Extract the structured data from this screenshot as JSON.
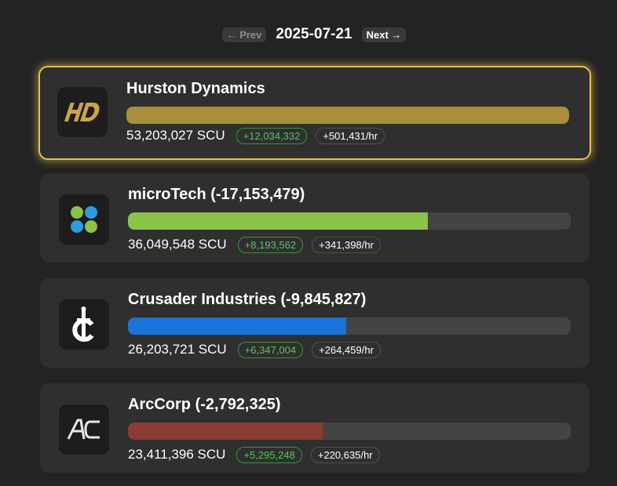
{
  "nav": {
    "prev_label": "← Prev",
    "date": "2025-07-21",
    "next_label": "Next →"
  },
  "corps": [
    {
      "name": "Hurston Dynamics",
      "scu": "53,203,027 SCU",
      "gain": "+12,034,332",
      "rate": "+501,431/hr",
      "fill_fraction": 1.0,
      "bar_color": "#a98f3b",
      "highlight": true,
      "logo_text": "HD"
    },
    {
      "name": "microTech (-17,153,479)",
      "scu": "36,049,548 SCU",
      "gain": "+8,193,562",
      "rate": "+341,398/hr",
      "fill_fraction": 0.678,
      "bar_color": "#8bc34a",
      "highlight": false
    },
    {
      "name": "Crusader Industries (-9,845,827)",
      "scu": "26,203,721 SCU",
      "gain": "+6,347,004",
      "rate": "+264,459/hr",
      "fill_fraction": 0.493,
      "bar_color": "#1a73d9",
      "highlight": false
    },
    {
      "name": "ArcCorp (-2,792,325)",
      "scu": "23,411,396 SCU",
      "gain": "+5,295,248",
      "rate": "+220,635/hr",
      "fill_fraction": 0.44,
      "bar_color": "#8a3b33",
      "highlight": false,
      "logo_text": "AC"
    }
  ]
}
